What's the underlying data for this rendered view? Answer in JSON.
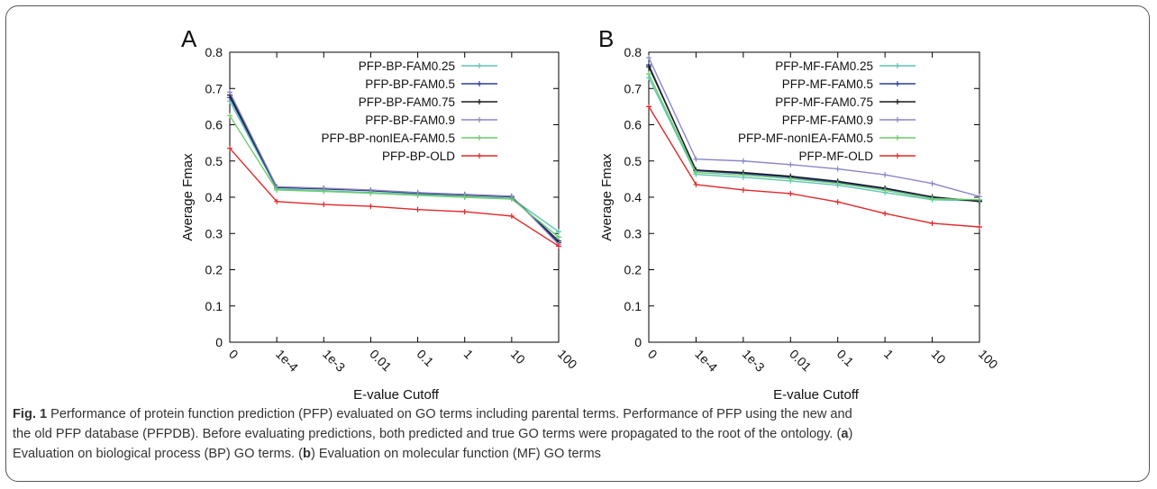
{
  "chart_data": [
    {
      "type": "line",
      "panel_label": "A",
      "xlabel": "E-value Cutoff",
      "ylabel": "Average Fmax",
      "categories": [
        "0",
        "1e-4",
        "1e-3",
        "0.01",
        "0.1",
        "1",
        "10",
        "100"
      ],
      "ylim": [
        0,
        0.8
      ],
      "yticks": [
        "0",
        "0.1",
        "0.2",
        "0.3",
        "0.4",
        "0.5",
        "0.6",
        "0.7",
        "0.8"
      ],
      "legend_position": "top-right",
      "series": [
        {
          "name": "PFP-BP-FAM0.25",
          "color": "#5fc4b4",
          "values": [
            0.665,
            0.423,
            0.418,
            0.413,
            0.408,
            0.402,
            0.397,
            0.305
          ]
        },
        {
          "name": "PFP-BP-FAM0.5",
          "color": "#2a3e9c",
          "values": [
            0.675,
            0.427,
            0.423,
            0.418,
            0.411,
            0.406,
            0.401,
            0.28
          ]
        },
        {
          "name": "PFP-BP-FAM0.75",
          "color": "#1a1a1a",
          "values": [
            0.682,
            0.428,
            0.424,
            0.419,
            0.412,
            0.407,
            0.402,
            0.275
          ]
        },
        {
          "name": "PFP-BP-FAM0.9",
          "color": "#8a86c8",
          "values": [
            0.69,
            0.429,
            0.425,
            0.42,
            0.413,
            0.408,
            0.403,
            0.27
          ]
        },
        {
          "name": "PFP-BP-nonIEA-FAM0.5",
          "color": "#6ccc6c",
          "values": [
            0.625,
            0.42,
            0.416,
            0.411,
            0.405,
            0.4,
            0.395,
            0.29
          ]
        },
        {
          "name": "PFP-BP-OLD",
          "color": "#e0282a",
          "values": [
            0.535,
            0.388,
            0.38,
            0.375,
            0.366,
            0.36,
            0.348,
            0.265
          ]
        }
      ]
    },
    {
      "type": "line",
      "panel_label": "B",
      "xlabel": "E-value Cutoff",
      "ylabel": "Average Fmax",
      "categories": [
        "0",
        "1e-4",
        "1e-3",
        "0.01",
        "0.1",
        "1",
        "10",
        "100"
      ],
      "ylim": [
        0,
        0.8
      ],
      "yticks": [
        "0",
        "0.1",
        "0.2",
        "0.3",
        "0.4",
        "0.5",
        "0.6",
        "0.7",
        "0.8"
      ],
      "legend_position": "top-right",
      "series": [
        {
          "name": "PFP-MF-FAM0.25",
          "color": "#5fc4b4",
          "values": [
            0.73,
            0.463,
            0.455,
            0.445,
            0.433,
            0.413,
            0.393,
            0.39
          ]
        },
        {
          "name": "PFP-MF-FAM0.5",
          "color": "#2a3e9c",
          "values": [
            0.765,
            0.473,
            0.465,
            0.455,
            0.441,
            0.423,
            0.4,
            0.39
          ]
        },
        {
          "name": "PFP-MF-FAM0.75",
          "color": "#1a1a1a",
          "values": [
            0.76,
            0.475,
            0.468,
            0.458,
            0.444,
            0.425,
            0.401,
            0.388
          ]
        },
        {
          "name": "PFP-MF-FAM0.9",
          "color": "#8a86c8",
          "values": [
            0.785,
            0.505,
            0.5,
            0.49,
            0.478,
            0.462,
            0.438,
            0.402
          ]
        },
        {
          "name": "PFP-MF-nonIEA-FAM0.5",
          "color": "#6ccc6c",
          "values": [
            0.74,
            0.468,
            0.461,
            0.451,
            0.438,
            0.419,
            0.396,
            0.393
          ]
        },
        {
          "name": "PFP-MF-OLD",
          "color": "#e0282a",
          "values": [
            0.65,
            0.435,
            0.42,
            0.41,
            0.387,
            0.355,
            0.328,
            0.318
          ]
        }
      ]
    }
  ],
  "caption": {
    "fig_label": "Fig. 1",
    "line1": " Performance of protein function prediction (PFP) evaluated on GO terms including parental terms. Performance of PFP using the new and",
    "line2": "the old PFP database (PFPDB). Before evaluating predictions, both predicted and true GO terms were propagated to the root of the ontology. (",
    "line2_bold": "a",
    "line2_end": ")",
    "line3": "Evaluation on biological process (BP) GO terms. (",
    "line3_bold": "b",
    "line3_end": ") Evaluation on molecular function (MF) GO terms"
  }
}
